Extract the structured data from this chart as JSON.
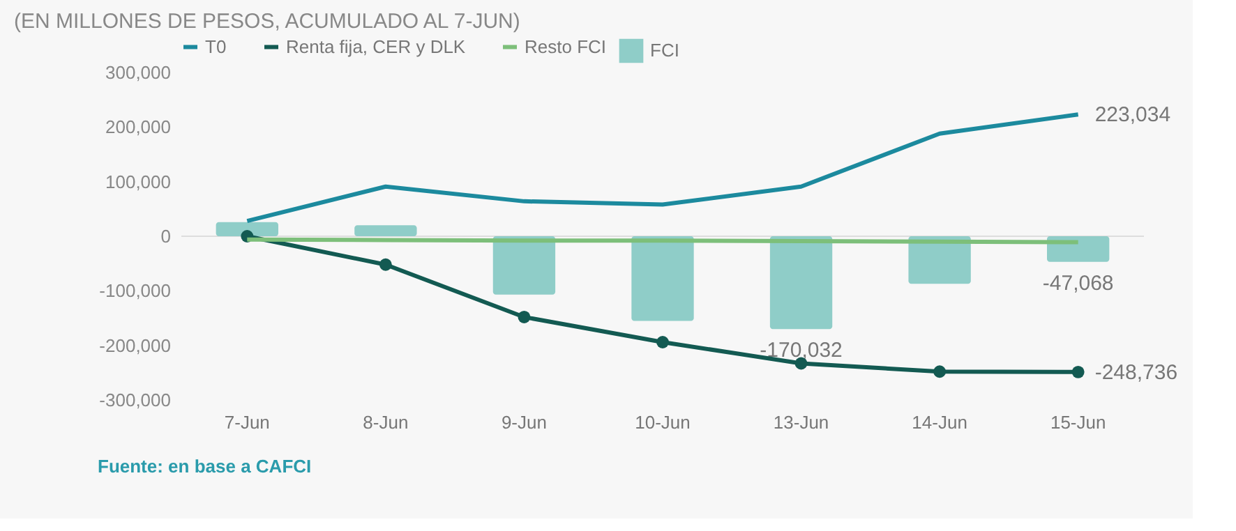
{
  "chart_data": {
    "type": "bar",
    "title": "(EN MILLONES DE PESOS, ACUMULADO AL 7-JUN)",
    "categories": [
      "7-Jun",
      "8-Jun",
      "9-Jun",
      "10-Jun",
      "13-Jun",
      "14-Jun",
      "15-Jun"
    ],
    "series": [
      {
        "name": "FCI",
        "color": "#8fcdc8",
        "values": [
          26000,
          20000,
          -107000,
          -155000,
          -170032,
          -87000,
          -47068
        ],
        "value_labels": [
          null,
          null,
          null,
          null,
          "-170,032",
          null,
          "-47,068"
        ]
      },
      {
        "name": "T0",
        "type": "line",
        "color": "#1c8a9e",
        "marker": "none",
        "values": [
          28000,
          91000,
          64000,
          58000,
          91000,
          188000,
          223034
        ],
        "value_labels": [
          null,
          null,
          null,
          null,
          null,
          null,
          "223,034"
        ]
      },
      {
        "name": "Renta fija, CER y DLK",
        "type": "line",
        "color": "#135a52",
        "marker": "circle",
        "values": [
          0,
          -52000,
          -148000,
          -194000,
          -233000,
          -248000,
          -248736
        ],
        "value_labels": [
          null,
          null,
          null,
          null,
          null,
          null,
          "-248,736"
        ]
      },
      {
        "name": "Resto FCI",
        "type": "line",
        "color": "#7dbf7a",
        "marker": "none",
        "values": [
          -6000,
          -7000,
          -8000,
          -8000,
          -9000,
          -10000,
          -11000
        ]
      }
    ],
    "ylim": [
      -300000,
      300000
    ],
    "yticks": [
      {
        "value": -300000,
        "label": "-300,000"
      },
      {
        "value": -200000,
        "label": "-200,000"
      },
      {
        "value": -100000,
        "label": "-100,000"
      },
      {
        "value": 0,
        "label": "0"
      },
      {
        "value": 100000,
        "label": "100,000"
      },
      {
        "value": 200000,
        "label": "200,000"
      },
      {
        "value": 300000,
        "label": "300,000"
      }
    ],
    "ref_lines": [
      {
        "axis": "y",
        "value": 0,
        "color": "#dddddd"
      }
    ],
    "grid": false,
    "legend": "top",
    "annotations": [
      "Fuente: en base a CAFCI"
    ]
  }
}
